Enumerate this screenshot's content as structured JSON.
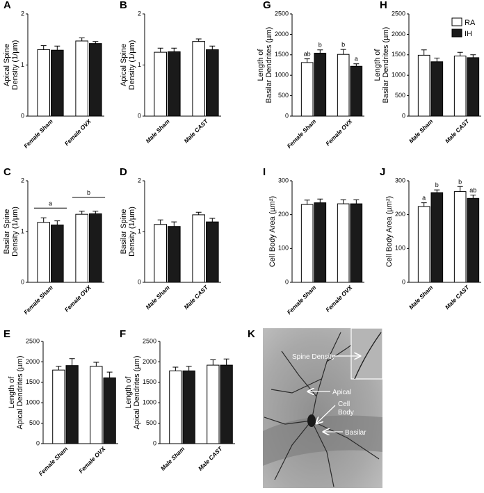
{
  "chart_data": [
    {
      "type": "bar",
      "letter": "A",
      "y_label": [
        "Apical Spine",
        "Density (1/µm)"
      ],
      "categories": [
        "Female Sham",
        "Female OVX"
      ],
      "ylim": [
        0,
        2
      ],
      "yticks": [
        0,
        1,
        2
      ],
      "series": [
        {
          "color": "#ffffff",
          "values": [
            1.3,
            1.47
          ],
          "errors": [
            0.08,
            0.06
          ]
        },
        {
          "color": "#1a1a1a",
          "values": [
            1.29,
            1.42
          ],
          "errors": [
            0.08,
            0.04
          ]
        }
      ]
    },
    {
      "type": "bar",
      "letter": "B",
      "y_label": [
        "Apical Spine",
        "Density (1/µm)"
      ],
      "categories": [
        "Male Sham",
        "Male CAST"
      ],
      "ylim": [
        0,
        2
      ],
      "yticks": [
        0,
        1,
        2
      ],
      "series": [
        {
          "color": "#ffffff",
          "values": [
            1.25,
            1.46
          ],
          "errors": [
            0.08,
            0.05
          ]
        },
        {
          "color": "#1a1a1a",
          "values": [
            1.26,
            1.3
          ],
          "errors": [
            0.07,
            0.07
          ]
        }
      ]
    },
    {
      "type": "bar",
      "letter": "G",
      "y_label": [
        "Length of",
        "Basilar Dendrites (µm)"
      ],
      "categories": [
        "Female Sham",
        "Female OVX"
      ],
      "ylim": [
        0,
        2500
      ],
      "yticks": [
        0,
        500,
        1000,
        1500,
        2000,
        2500
      ],
      "series": [
        {
          "color": "#ffffff",
          "values": [
            1310,
            1510
          ],
          "errors": [
            90,
            120
          ],
          "sig_labels": [
            "ab",
            "b"
          ]
        },
        {
          "color": "#1a1a1a",
          "values": [
            1540,
            1220
          ],
          "errors": [
            80,
            60
          ],
          "sig_labels": [
            "b",
            "a"
          ]
        }
      ]
    },
    {
      "type": "bar",
      "letter": "H",
      "y_label": [
        "Length of",
        "Basilar Dendrites (µm)"
      ],
      "categories": [
        "Male Sham",
        "Male CAST"
      ],
      "ylim": [
        0,
        2500
      ],
      "yticks": [
        0,
        500,
        1000,
        1500,
        2000,
        2500
      ],
      "legend": "upper right",
      "series": [
        {
          "name": "RA",
          "color": "#ffffff",
          "values": [
            1490,
            1470
          ],
          "errors": [
            130,
            90
          ]
        },
        {
          "name": "IH",
          "color": "#1a1a1a",
          "values": [
            1330,
            1430
          ],
          "errors": [
            90,
            70
          ]
        }
      ]
    },
    {
      "type": "bar",
      "letter": "C",
      "y_label": [
        "Basilar Spine",
        "Density (1/µm)"
      ],
      "categories": [
        "Female Sham",
        "Female OVX"
      ],
      "ylim": [
        0,
        2
      ],
      "yticks": [
        0,
        1,
        2
      ],
      "group_labels": [
        "a",
        "b"
      ],
      "series": [
        {
          "color": "#ffffff",
          "values": [
            1.18,
            1.34
          ],
          "errors": [
            0.09,
            0.06
          ]
        },
        {
          "color": "#1a1a1a",
          "values": [
            1.13,
            1.35
          ],
          "errors": [
            0.08,
            0.05
          ]
        }
      ]
    },
    {
      "type": "bar",
      "letter": "D",
      "y_label": [
        "Basilar Spine",
        "Density (1/µm)"
      ],
      "categories": [
        "Male Sham",
        "Male CAST"
      ],
      "ylim": [
        0,
        2
      ],
      "yticks": [
        0,
        1,
        2
      ],
      "series": [
        {
          "color": "#ffffff",
          "values": [
            1.14,
            1.33
          ],
          "errors": [
            0.09,
            0.05
          ]
        },
        {
          "color": "#1a1a1a",
          "values": [
            1.1,
            1.19
          ],
          "errors": [
            0.09,
            0.07
          ]
        }
      ]
    },
    {
      "type": "bar",
      "letter": "I",
      "y_label": [
        "Cell Body Area (µm²)"
      ],
      "categories": [
        "Female Sham",
        "Female OVX"
      ],
      "ylim": [
        0,
        300
      ],
      "yticks": [
        0,
        100,
        200,
        300
      ],
      "series": [
        {
          "color": "#ffffff",
          "values": [
            230,
            232
          ],
          "errors": [
            13,
            12
          ]
        },
        {
          "color": "#1a1a1a",
          "values": [
            235,
            232
          ],
          "errors": [
            11,
            12
          ]
        }
      ]
    },
    {
      "type": "bar",
      "letter": "J",
      "y_label": [
        "Cell Body Area (µm²)"
      ],
      "categories": [
        "Male Sham",
        "Male CAST"
      ],
      "ylim": [
        0,
        300
      ],
      "yticks": [
        0,
        100,
        200,
        300
      ],
      "series": [
        {
          "color": "#ffffff",
          "values": [
            224,
            268
          ],
          "errors": [
            11,
            15
          ],
          "sig_labels": [
            "a",
            "b"
          ]
        },
        {
          "color": "#1a1a1a",
          "values": [
            265,
            248
          ],
          "errors": [
            8,
            10
          ],
          "sig_labels": [
            "b",
            "ab"
          ]
        }
      ]
    },
    {
      "type": "bar",
      "letter": "E",
      "y_label": [
        "Length of",
        "Apical Dendrites (µm)"
      ],
      "categories": [
        "Female Sham",
        "Female OVX"
      ],
      "ylim": [
        0,
        2500
      ],
      "yticks": [
        0,
        500,
        1000,
        1500,
        2000,
        2500
      ],
      "series": [
        {
          "color": "#ffffff",
          "values": [
            1800,
            1890
          ],
          "errors": [
            90,
            100
          ]
        },
        {
          "color": "#1a1a1a",
          "values": [
            1910,
            1610
          ],
          "errors": [
            170,
            140
          ]
        }
      ]
    },
    {
      "type": "bar",
      "letter": "F",
      "y_label": [
        "Length of",
        "Apical Dendrites (µm)"
      ],
      "categories": [
        "Male Sham",
        "Male CAST"
      ],
      "ylim": [
        0,
        2500
      ],
      "yticks": [
        0,
        500,
        1000,
        1500,
        2000,
        2500
      ],
      "series": [
        {
          "color": "#ffffff",
          "values": [
            1780,
            1920
          ],
          "errors": [
            90,
            130
          ]
        },
        {
          "color": "#1a1a1a",
          "values": [
            1780,
            1920
          ],
          "errors": [
            110,
            150
          ]
        }
      ]
    }
  ],
  "image_panel": {
    "letter": "K",
    "labels": {
      "spine": "Spine Density",
      "apical": "Apical",
      "cell_body": [
        "Cell",
        "Body"
      ],
      "basilar": "Basilar"
    }
  }
}
